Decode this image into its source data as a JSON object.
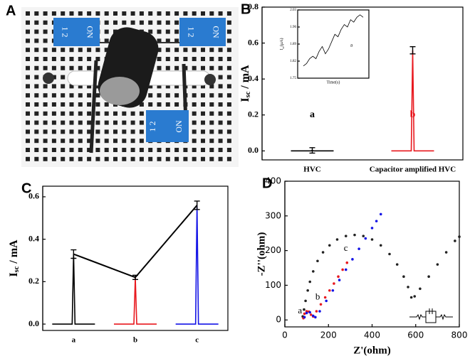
{
  "photo": {
    "panel": "A",
    "switch_text": [
      "1 2",
      "ON"
    ]
  },
  "chart_data": [
    {
      "type": "bar",
      "panel": "B",
      "categories": [
        "HVC",
        "Capacitor amplified HVC"
      ],
      "values": [
        0.003,
        0.56
      ],
      "errors": [
        0.015,
        0.02
      ],
      "colors": [
        "#000000",
        "#e8191f"
      ],
      "annotations": [
        "a",
        "b"
      ],
      "ylabel": {
        "main": "I",
        "sub": "sc",
        "unit": " / mA"
      },
      "ylim": [
        -0.05,
        0.8
      ],
      "yticks": [
        {
          "value": 0,
          "label": "0.0"
        },
        0.2,
        0.4,
        0.6,
        0.8
      ],
      "inset": {
        "type": "line",
        "xlabel": "Time(s)",
        "ylabel": {
          "main": "I",
          "sub": "sc",
          "unit": "(μA)"
        },
        "annotation": "a",
        "color": "#000000",
        "ylim": [
          1.75,
          2.03
        ],
        "yticks": [
          1.75,
          1.82,
          1.89,
          1.96,
          2.03
        ],
        "values": [
          1.8,
          1.81,
          1.83,
          1.84,
          1.83,
          1.86,
          1.88,
          1.85,
          1.87,
          1.9,
          1.93,
          1.92,
          1.95,
          1.97,
          1.96,
          1.99,
          1.98,
          2.0,
          2.01,
          2.0
        ]
      }
    },
    {
      "type": "bar",
      "panel": "C",
      "categories": [
        "a",
        "b",
        "c"
      ],
      "values": [
        0.33,
        0.22,
        0.56
      ],
      "errors": [
        0.02,
        0.01,
        0.02
      ],
      "colors": [
        "#000000",
        "#e8191f",
        "#1414e6"
      ],
      "ylabel": {
        "main": "I",
        "sub": "sc",
        "unit": " / mA"
      },
      "ylim": [
        -0.03,
        0.65
      ],
      "yticks": [
        {
          "value": 0,
          "label": "0.0"
        },
        0.2,
        0.4,
        0.6
      ]
    },
    {
      "type": "scatter",
      "panel": "D",
      "xlabel": "Z'(ohm)",
      "ylabel": "-Z''(ohm)",
      "xlim": [
        0,
        800
      ],
      "xticks": [
        0,
        200,
        400,
        600,
        800
      ],
      "ylim": [
        -20,
        400
      ],
      "yticks": [
        0,
        100,
        200,
        300,
        400
      ],
      "annotations": [
        "a",
        "b",
        "c"
      ],
      "series": [
        {
          "color": "#222222",
          "x": [
            82,
            88,
            95,
            105,
            115,
            130,
            150,
            175,
            205,
            240,
            280,
            320,
            360,
            400,
            440,
            480,
            515,
            545,
            565,
            580,
            595,
            620,
            660,
            700,
            740,
            780,
            800
          ],
          "y": [
            10,
            30,
            55,
            85,
            110,
            140,
            170,
            195,
            215,
            232,
            242,
            245,
            242,
            232,
            215,
            190,
            160,
            125,
            95,
            65,
            68,
            90,
            125,
            160,
            195,
            228,
            240
          ]
        },
        {
          "color": "#e8191f",
          "x": [
            85,
            90,
            100,
            110,
            120,
            130,
            145,
            165,
            185,
            205,
            225,
            245,
            265,
            285
          ],
          "y": [
            5,
            18,
            25,
            24,
            15,
            10,
            25,
            45,
            65,
            85,
            105,
            125,
            145,
            165
          ]
        },
        {
          "color": "#1414e6",
          "x": [
            90,
            100,
            115,
            130,
            140,
            160,
            190,
            220,
            250,
            280,
            310,
            340,
            370,
            400,
            420,
            440
          ],
          "y": [
            8,
            20,
            22,
            12,
            8,
            25,
            55,
            85,
            115,
            145,
            175,
            205,
            235,
            265,
            285,
            305
          ]
        }
      ]
    }
  ]
}
